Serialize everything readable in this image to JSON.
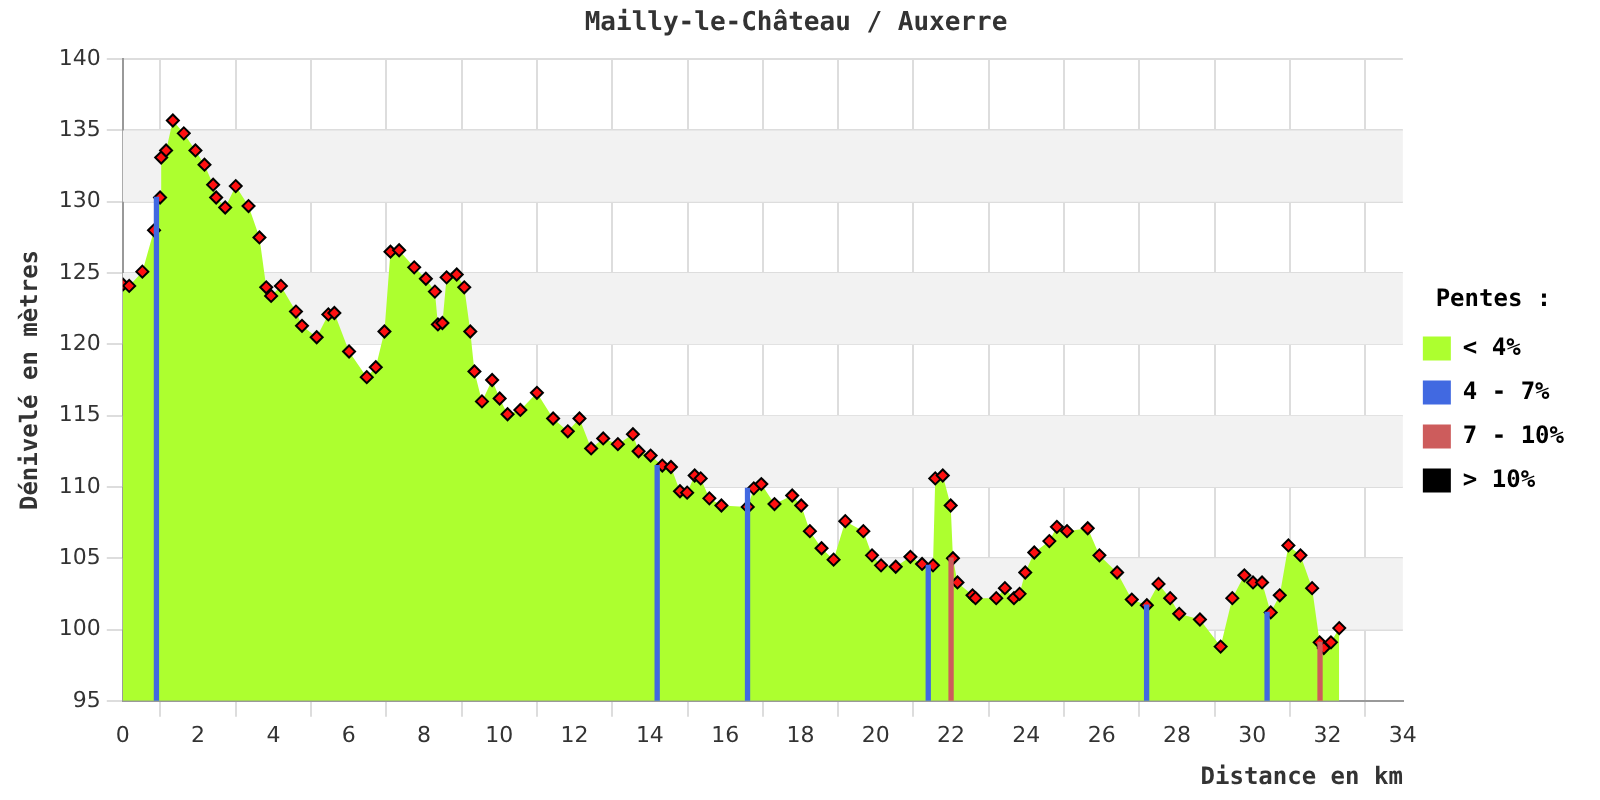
{
  "chart_data": {
    "type": "area",
    "title": "Mailly-le-Château / Auxerre",
    "xlabel": "Distance en km",
    "ylabel": "Dénivelé en mètres",
    "legend_title": "Pentes :",
    "legend": "right",
    "grid": true,
    "marker": "diamond",
    "xlim": [
      0,
      34
    ],
    "ylim": [
      95,
      140
    ],
    "xticks": [
      0,
      2,
      4,
      6,
      8,
      10,
      12,
      14,
      16,
      18,
      20,
      22,
      24,
      26,
      28,
      30,
      32,
      34
    ],
    "yticks": [
      95,
      100,
      105,
      110,
      115,
      120,
      125,
      130,
      135,
      140
    ],
    "series": [
      {
        "name": "< 4%",
        "color": "#adff2f",
        "x": [
          0,
          0.17,
          0.52,
          0.83,
          0.99,
          1.02,
          1.15,
          1.33,
          1.62,
          1.93,
          2.17,
          2.4,
          2.48,
          2.72,
          3.0,
          3.34,
          3.63,
          3.81,
          3.94,
          4.2,
          4.6,
          4.76,
          5.15,
          5.46,
          5.62,
          6.01,
          6.48,
          6.72,
          6.95,
          7.11,
          7.34,
          7.74,
          8.05,
          8.29,
          8.37,
          8.49,
          8.6,
          8.87,
          9.07,
          9.23,
          9.34,
          9.54,
          9.81,
          10.01,
          10.22,
          10.56,
          11.0,
          11.43,
          11.82,
          12.13,
          12.44,
          12.76,
          13.15,
          13.55,
          13.7,
          14.02,
          14.33,
          14.56,
          14.8,
          14.99,
          15.19,
          15.35,
          15.58,
          15.9,
          16.6,
          16.76,
          16.96,
          17.31,
          17.78,
          18.02,
          18.25,
          18.56,
          18.88,
          19.19,
          19.67,
          19.9,
          20.14,
          20.53,
          20.92,
          21.23,
          21.52,
          21.58,
          21.78,
          21.99,
          22.05,
          22.17,
          22.57,
          22.65,
          23.2,
          23.43,
          23.67,
          23.82,
          23.97,
          24.21,
          24.61,
          24.81,
          25.08,
          25.63,
          25.94,
          26.41,
          26.8,
          27.2,
          27.51,
          27.82,
          28.06,
          28.61,
          29.16,
          29.47,
          29.79,
          30.02,
          30.26,
          30.49,
          30.73,
          30.96,
          31.28,
          31.59,
          31.79,
          31.9,
          32.09,
          32.31
        ],
        "values": [
          124.2,
          124.1,
          125.1,
          128.0,
          130.3,
          133.1,
          133.6,
          135.7,
          134.8,
          133.6,
          132.6,
          131.2,
          130.3,
          129.6,
          131.1,
          129.7,
          127.5,
          124.0,
          123.4,
          124.1,
          122.3,
          121.3,
          120.5,
          122.1,
          122.2,
          119.5,
          117.7,
          118.4,
          120.9,
          126.5,
          126.6,
          125.4,
          124.6,
          123.7,
          121.4,
          121.5,
          124.7,
          124.9,
          124.0,
          120.9,
          118.1,
          116.0,
          117.5,
          116.2,
          115.1,
          115.4,
          116.6,
          114.8,
          113.9,
          114.8,
          112.7,
          113.4,
          113.0,
          113.7,
          112.5,
          112.2,
          111.5,
          111.4,
          109.7,
          109.6,
          110.8,
          110.6,
          109.2,
          108.7,
          108.6,
          109.9,
          110.2,
          108.8,
          109.4,
          108.7,
          106.9,
          105.7,
          104.9,
          107.6,
          106.9,
          105.2,
          104.5,
          104.4,
          105.1,
          104.6,
          104.5,
          110.6,
          110.8,
          108.7,
          105.0,
          103.3,
          102.4,
          102.2,
          102.2,
          102.9,
          102.2,
          102.5,
          104.0,
          105.4,
          106.2,
          107.2,
          106.9,
          107.1,
          105.2,
          104.0,
          102.1,
          101.7,
          103.2,
          102.2,
          101.1,
          100.7,
          98.8,
          102.2,
          103.8,
          103.3,
          103.3,
          101.2,
          102.4,
          105.9,
          105.2,
          102.9,
          99.1,
          98.7,
          99.1,
          100.1
        ]
      },
      {
        "name": "4 - 7%",
        "color": "#4169e1",
        "type": "bar",
        "x": [
          1.0,
          14.3,
          16.7,
          21.5,
          27.3,
          30.5
        ],
        "values": [
          130.3,
          111.5,
          109.9,
          104.5,
          101.7,
          101.2
        ]
      },
      {
        "name": "7 - 10%",
        "color": "#cd5c5c",
        "type": "bar",
        "x": [
          22.0,
          31.8
        ],
        "values": [
          105.0,
          99.1
        ]
      },
      {
        "name": "> 10%",
        "color": "#000000",
        "type": "bar"
      }
    ]
  }
}
